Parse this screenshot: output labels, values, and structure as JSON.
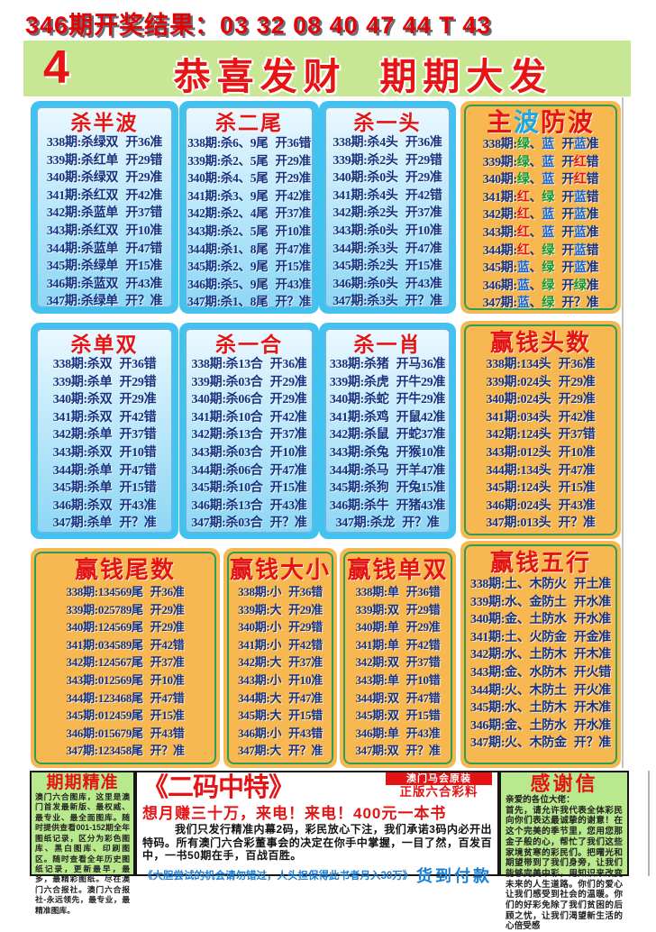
{
  "header": {
    "result_line": "346期开奖结果：03 32 08 40 47 44 T 43",
    "banner_number": "4",
    "banner_title": "恭喜发财  期期大发"
  },
  "colors": {
    "title_red": "#e41414",
    "row_navy": "#16317f",
    "wave_red": "#e41414",
    "wave_green": "#0f9a38",
    "wave_blue": "#1666d9",
    "panel_blue": "#41c2ef",
    "panel_orange": "#f8b851",
    "banner_green": "#c8e794",
    "bottom_green": "#b9e98d"
  },
  "panels": [
    {
      "id": "p-shabanbo",
      "style": "blue",
      "title": "杀半波",
      "colorize": false,
      "rows": [
        "338期:杀绿双 开36准",
        "339期:杀红单 开29错",
        "340期:杀绿双 开29准",
        "341期:杀红双 开42准",
        "342期:杀蓝单 开37错",
        "343期:杀红双 开10准",
        "344期:杀蓝单 开47错",
        "345期:杀绿单 开15准",
        "346期:杀蓝双 开43准",
        "347期:杀绿单 开？准"
      ]
    },
    {
      "id": "p-shaerwei",
      "style": "blue",
      "title": "杀二尾",
      "colorize": false,
      "rows": [
        "338期:杀6、9尾 开36错",
        "339期:杀2、5尾 开29准",
        "340期:杀4、5尾 开29准",
        "341期:杀3、9尾 开42准",
        "342期:杀2、4尾 开37准",
        "343期:杀2、5尾 开10准",
        "344期:杀1、8尾 开47准",
        "345期:杀2、9尾 开15准",
        "346期:杀5、9尾 开43准",
        "347期:杀1、8尾 开？准"
      ]
    },
    {
      "id": "p-shayitou",
      "style": "blue",
      "title": "杀一头",
      "colorize": false,
      "rows": [
        "338期:杀4头 开36准",
        "339期:杀2头 开29错",
        "340期:杀0头 开29准",
        "341期:杀4头 开42错",
        "342期:杀2头 开37准",
        "343期:杀0头 开10准",
        "344期:杀3头 开47准",
        "345期:杀2头 开15准",
        "346期:杀0头 开43准",
        "347期:杀3头 开？准"
      ]
    },
    {
      "id": "p-zhubofangbo",
      "style": "orange",
      "title": "主波防波",
      "colorize": true,
      "title_colors": [
        "#e41414",
        "#18a8e8",
        "#e41414",
        "#e41414"
      ],
      "rows": [
        "338期:绿、蓝 开蓝准",
        "339期:绿、蓝 开红错",
        "340期:绿、蓝 开红错",
        "341期:红、绿 开蓝错",
        "342期:红、蓝 开蓝准",
        "343期:红、蓝 开蓝准",
        "344期:红、绿 开蓝错",
        "345期:蓝、绿 开蓝准",
        "346期:蓝、绿 开绿准",
        "347期:蓝、绿 开？准"
      ]
    },
    {
      "id": "p-shadanshuang",
      "style": "blue",
      "title": "杀单双",
      "colorize": false,
      "rows": [
        "338期:杀双 开36错",
        "339期:杀单 开29错",
        "340期:杀双 开29准",
        "341期:杀双 开42错",
        "342期:杀单 开37错",
        "343期:杀双 开10错",
        "344期:杀单 开47错",
        "345期:杀单 开15错",
        "346期:杀双 开43准",
        "347期:杀单 开？准"
      ]
    },
    {
      "id": "p-shayihe",
      "style": "blue",
      "title": "杀一合",
      "colorize": false,
      "rows": [
        "338期:杀13合 开36准",
        "339期:杀03合 开29准",
        "340期:杀06合 开29准",
        "341期:杀10合 开42准",
        "342期:杀13合 开37准",
        "343期:杀03合 开10准",
        "344期:杀06合 开47准",
        "345期:杀10合 开15准",
        "346期:杀13合 开43准",
        "347期:杀03合 开？准"
      ]
    },
    {
      "id": "p-shayixiao",
      "style": "blue",
      "title": "杀一肖",
      "colorize": false,
      "rows": [
        "338期:杀猪 开马36准",
        "339期:杀虎 开牛29准",
        "340期:杀蛇 开牛29准",
        "341期:杀鸡 开鼠42准",
        "342期:杀鼠 开蛇37准",
        "343期:杀兔 开猴10准",
        "344期:杀马 开羊47准",
        "345期:杀狗 开兔15准",
        "346期:杀牛 开猪43准",
        "347期:杀龙 开？准"
      ]
    },
    {
      "id": "p-yingqiantoushu",
      "style": "orange",
      "title": "赢钱头数",
      "colorize": false,
      "rows": [
        "338期:134头 开36准",
        "339期:024头 开29准",
        "340期:024头 开29准",
        "341期:034头 开42准",
        "342期:124头 开37错",
        "343期:012头 开10准",
        "344期:134头 开47准",
        "345期:124头 开15准",
        "346期:024头 开43准",
        "347期:013头 开？准"
      ]
    },
    {
      "id": "p-yingqianweishu",
      "style": "orange",
      "title": "赢钱尾数",
      "colorize": false,
      "rows": [
        "338期:134569尾 开36准",
        "339期:025789尾 开29准",
        "340期:124569尾 开29准",
        "341期:034589尾 开42错",
        "342期:124567尾 开37准",
        "343期:012569尾 开10准",
        "344期:123468尾 开47错",
        "345期:012459尾 开15准",
        "346期:015679尾 开43错",
        "347期:123458尾 开？准"
      ]
    },
    {
      "id": "p-yingqiandaxiao",
      "style": "orange",
      "title": "赢钱大小",
      "colorize": false,
      "rows": [
        "338期:小 开36错",
        "339期:大 开29准",
        "340期:小 开29错",
        "341期:小 开42错",
        "342期:大 开37准",
        "343期:小 开10准",
        "344期:大 开47准",
        "345期:大 开15错",
        "346期:小 开43错",
        "347期:大 开？准"
      ]
    },
    {
      "id": "p-yingqiandanshuang",
      "style": "orange",
      "title": "赢钱单双",
      "colorize": false,
      "rows": [
        "338期:单 开36错",
        "339期:双 开29错",
        "340期:单 开29准",
        "341期:单 开42错",
        "342期:双 开37错",
        "343期:单 开10错",
        "344期:双 开47错",
        "345期:双 开15错",
        "346期:单 开43准",
        "347期:双 开？准"
      ]
    },
    {
      "id": "p-yingqianwuxing",
      "style": "orange",
      "title": "赢钱五行",
      "colorize": false,
      "rows": [
        "338期:土、木防火 开土准",
        "339期:水、金防土 开水准",
        "340期:金、土防水 开水准",
        "341期:土、火防金 开金准",
        "342期:水、土防木 开木准",
        "343期:金、水防木 开火错",
        "344期:火、木防土 开火准",
        "345期:水、土防木 开木准",
        "346期:金、土防水 开水准",
        "347期:火、木防金 开？准"
      ]
    }
  ],
  "bottom": {
    "jingzhun": {
      "title": "期期精准",
      "body": "澳门六合图库，这里是澳门首发最新版、最权威、最专业、最全面图库。随时提供查看001-152期全年图纸记录，区分为彩色图库、黑白图库、印刷图区。随时查看全年历史图纸记录，更新最早，最多，最精彩图纸。尽在澳门六合报社。澳门六合报社-永远领先，最专业，最精准图库。"
    },
    "erma": {
      "title": "《二码中特》",
      "badge1": "澳门马会原装",
      "badge2": "正版六合彩料",
      "hotline": "想月赚三十万，来电！来电！400元一本书",
      "body": "我们只发行精准内幕2码，彩民放心下注，我们承诺3码内必开出特码。所有澳门六合彩董事会的决定在你手中掌握，一目了然，百发百中，一书50期在手，百战百胜。",
      "note": "《大胆尝试的机会请勿错过，人头担保得此书者月入30万》",
      "cod": "货到付款"
    },
    "ganxie": {
      "title": "感谢信",
      "greeting": "亲爱的各位大佬：",
      "body": "首先，请允许我代表全体彩民向你们表达最诚挚的谢意！在这个完美的季节里，您用您那金子般的心，帮忙了我们这些家境贫寒的彩民们。把曙光和期望带到了我们身旁，让我们能够完美中彩，用知识来改变未来的人生道路。你们的爱心让我们感受到社会的温暖。你们的好彩免除了我们贫困的后顾之忧，让我们渴望新生活的心倍受感"
    }
  }
}
